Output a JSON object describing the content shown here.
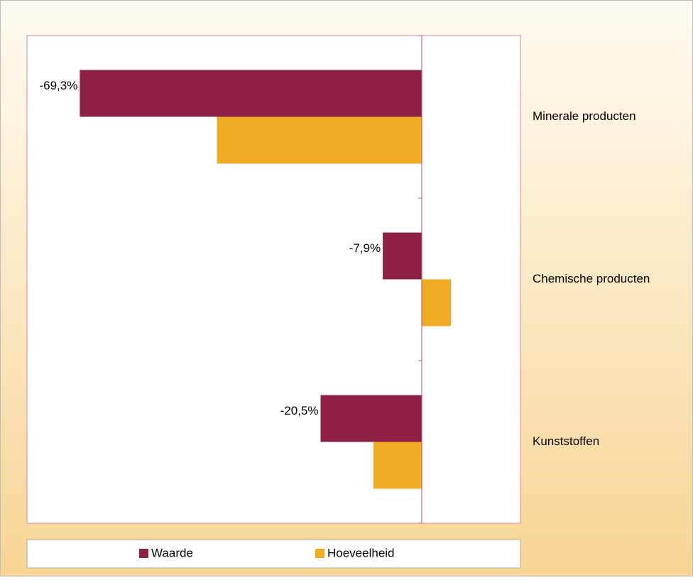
{
  "chart_data": {
    "type": "hbar",
    "categories": [
      "Minerale producten",
      "Chemische producten",
      "Kunststoffen"
    ],
    "series": [
      {
        "name": "Waarde",
        "color": "#8e1f45",
        "values": [
          -69.3,
          -7.9,
          -20.5
        ],
        "value_labels": [
          "-69,3%",
          "-7,9%",
          "-20,5%"
        ]
      },
      {
        "name": "Hoeveelheid",
        "color": "#f0aa23",
        "values": [
          -41.5,
          5.9,
          -9.8
        ]
      }
    ],
    "xlim": [
      -80,
      20
    ],
    "grid": false,
    "legend": "bottom"
  }
}
